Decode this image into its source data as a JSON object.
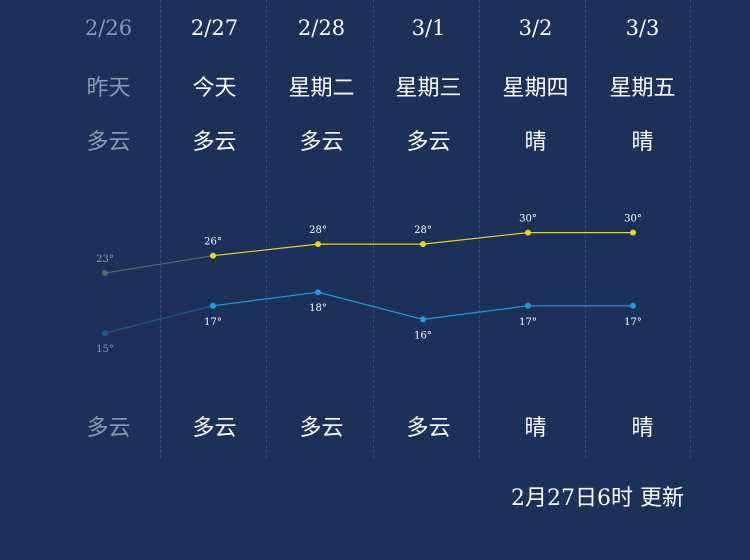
{
  "days": [
    {
      "date": "2/26",
      "day": "昨天",
      "weather_day": "多云",
      "weather_night": "多云",
      "high": "23°",
      "low": "15°",
      "past": true
    },
    {
      "date": "2/27",
      "day": "今天",
      "weather_day": "多云",
      "weather_night": "多云",
      "high": "26°",
      "low": "17°",
      "past": false
    },
    {
      "date": "2/28",
      "day": "星期二",
      "weather_day": "多云",
      "weather_night": "多云",
      "high": "28°",
      "low": "18°",
      "past": false
    },
    {
      "date": "3/1",
      "day": "星期三",
      "weather_day": "多云",
      "weather_night": "多云",
      "high": "28°",
      "low": "16°",
      "past": false
    },
    {
      "date": "3/2",
      "day": "星期四",
      "weather_day": "晴",
      "weather_night": "晴",
      "high": "30°",
      "low": "17°",
      "past": false
    },
    {
      "date": "3/3",
      "day": "星期五",
      "weather_day": "晴",
      "weather_night": "晴",
      "high": "30°",
      "low": "17°",
      "past": false
    }
  ],
  "updated": "2月27日6时 更新",
  "colors": {
    "background": "#1c3059",
    "high_line": "#f2d31a",
    "low_line": "#1f9be0",
    "past_high": "#5e6470",
    "past_low": "#24588a",
    "past_text": "#8e9ab3"
  },
  "chart_data": {
    "type": "line",
    "x": [
      "2/26",
      "2/27",
      "2/28",
      "3/1",
      "3/2",
      "3/3"
    ],
    "series": [
      {
        "values": [
          23,
          26,
          28,
          28,
          30,
          30
        ]
      },
      {
        "values": [
          15,
          17,
          18,
          16,
          17,
          17
        ]
      }
    ],
    "grid": false
  }
}
